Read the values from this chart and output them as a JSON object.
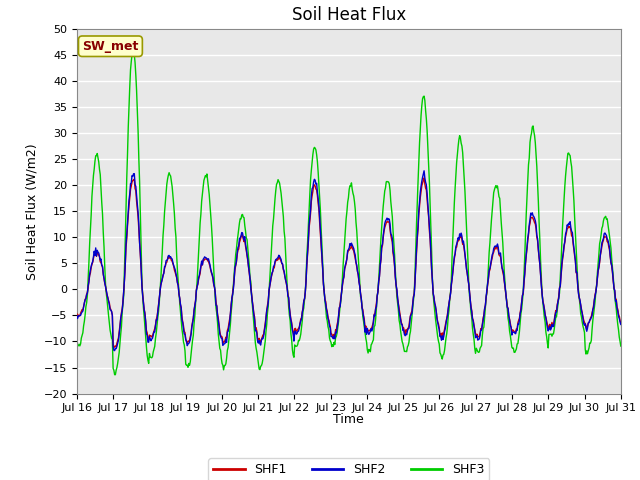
{
  "title": "Soil Heat Flux",
  "ylabel": "Soil Heat Flux (W/m2)",
  "xlabel": "Time",
  "ylim": [
    -20,
    50
  ],
  "yticks": [
    -20,
    -15,
    -10,
    -5,
    0,
    5,
    10,
    15,
    20,
    25,
    30,
    35,
    40,
    45,
    50
  ],
  "xtick_labels": [
    "Jul 16",
    "Jul 17",
    "Jul 18",
    "Jul 19",
    "Jul 20",
    "Jul 21",
    "Jul 22",
    "Jul 23",
    "Jul 24",
    "Jul 25",
    "Jul 26",
    "Jul 27",
    "Jul 28",
    "Jul 29",
    "Jul 30",
    "Jul 31"
  ],
  "legend_labels": [
    "SHF1",
    "SHF2",
    "SHF3"
  ],
  "line_colors": [
    "#cc0000",
    "#0000cc",
    "#00cc00"
  ],
  "annotation_text": "SW_met",
  "annotation_bg": "#ffffcc",
  "annotation_border": "#999900",
  "plot_bg_color": "#e8e8e8",
  "fig_bg_color": "#ffffff",
  "grid_color": "#ffffff",
  "title_fontsize": 12,
  "axis_fontsize": 9,
  "tick_fontsize": 8,
  "n_days": 15,
  "n_per_day": 48
}
